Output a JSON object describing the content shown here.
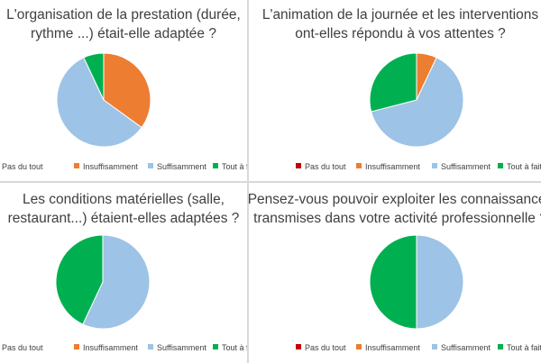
{
  "series_colors": {
    "Pas du tout": "#c00000",
    "Insuffisamment": "#ed7d31",
    "Suffisamment": "#9dc3e6",
    "Tout à fait": "#00b050"
  },
  "chart_data": [
    {
      "type": "pie",
      "title": "L'organisation de la prestation (durée,\nrythme ...) était-elle adaptée ?",
      "categories": [
        "Pas du tout",
        "Insuffisamment",
        "Suffisamment",
        "Tout à fait"
      ],
      "values": [
        0,
        35,
        58,
        7
      ],
      "legend": [
        "Pas du tout",
        "Insuffisamment",
        "Suffisamment",
        "Tout à fait"
      ],
      "legend_position": "bottom"
    },
    {
      "type": "pie",
      "title": "L'animation de la journée et les interventions\nont-elles répondu à vos attentes ?",
      "categories": [
        "Pas du tout",
        "Insuffisamment",
        "Suffisamment",
        "Tout à fait"
      ],
      "values": [
        0,
        7,
        64,
        29
      ],
      "legend": [
        "Pas du tout",
        "Insuffisamment",
        "Suffisamment",
        "Tout à fait"
      ],
      "legend_position": "bottom"
    },
    {
      "type": "pie",
      "title": "Les conditions matérielles (salle,\nrestaurant...) étaient-elles adaptées ?",
      "categories": [
        "Pas du tout",
        "Insuffisamment",
        "Suffisamment",
        "Tout à fait"
      ],
      "values": [
        0,
        0,
        57,
        43
      ],
      "legend": [
        "Pas du tout",
        "Insuffisamment",
        "Suffisamment",
        "Tout à fait"
      ],
      "legend_position": "bottom"
    },
    {
      "type": "pie",
      "title": "Pensez-vous pouvoir exploiter les connaissances\ntransmises dans votre activité professionnelle ?",
      "categories": [
        "Pas du tout",
        "Insuffisamment",
        "Suffisamment",
        "Tout à fait"
      ],
      "values": [
        0,
        0,
        50,
        50
      ],
      "legend": [
        "Pas du tout",
        "Insuffisamment",
        "Suffisamment",
        "Tout à fait"
      ],
      "legend_position": "bottom"
    }
  ]
}
